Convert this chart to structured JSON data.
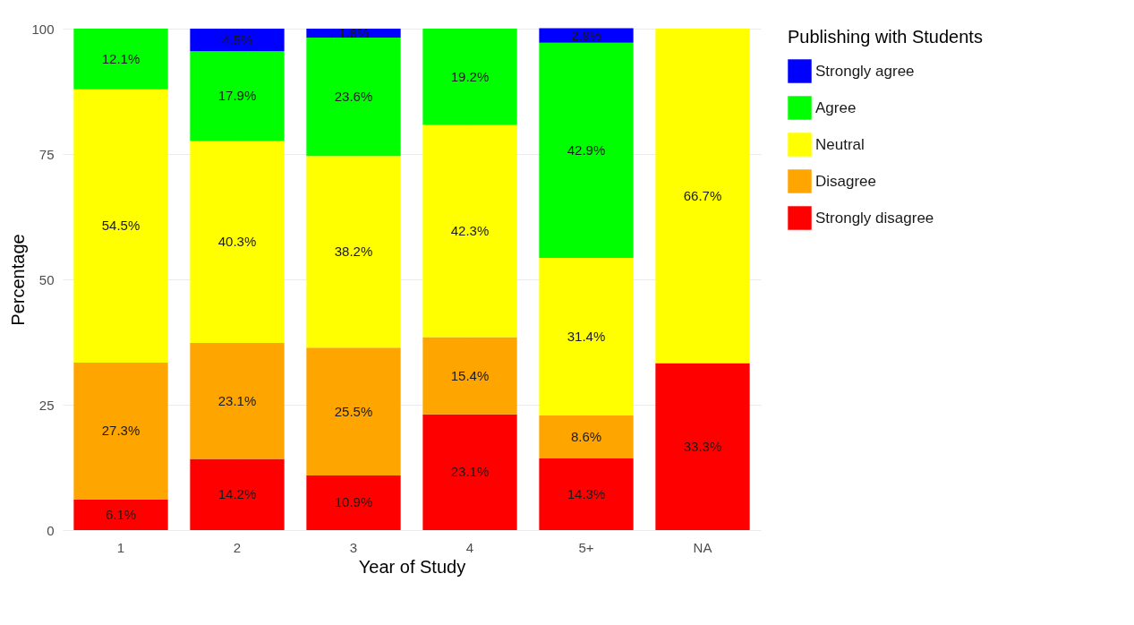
{
  "chart_data": {
    "type": "bar",
    "stacked": true,
    "xlabel": "Year of Study",
    "ylabel": "Percentage",
    "legend_title": "Publishing with Students",
    "legend": "right",
    "grid": true,
    "categories": [
      "1",
      "2",
      "3",
      "4",
      "5+",
      "NA"
    ],
    "ylim": [
      0,
      100
    ],
    "yticks": [
      0,
      25,
      50,
      75,
      100
    ],
    "series": [
      {
        "name": "Strongly disagree",
        "color": "#ff0000",
        "values": [
          6.1,
          14.2,
          10.9,
          23.1,
          14.3,
          33.3
        ],
        "value_labels": [
          "6.1%",
          "14.2%",
          "10.9%",
          "23.1%",
          "14.3%",
          "33.3%"
        ]
      },
      {
        "name": "Disagree",
        "color": "#ffa500",
        "values": [
          27.3,
          23.1,
          25.5,
          15.4,
          8.6,
          null
        ],
        "value_labels": [
          "27.3%",
          "23.1%",
          "25.5%",
          "15.4%",
          "8.6%",
          null
        ]
      },
      {
        "name": "Neutral",
        "color": "#ffff00",
        "values": [
          54.5,
          40.3,
          38.2,
          42.3,
          31.4,
          66.7
        ],
        "value_labels": [
          "54.5%",
          "40.3%",
          "38.2%",
          "42.3%",
          "31.4%",
          "66.7%"
        ]
      },
      {
        "name": "Agree",
        "color": "#00ff00",
        "values": [
          12.1,
          17.9,
          23.6,
          19.2,
          42.9,
          null
        ],
        "value_labels": [
          "12.1%",
          "17.9%",
          "23.6%",
          "19.2%",
          "42.9%",
          null
        ]
      },
      {
        "name": "Strongly agree",
        "color": "#0000ff",
        "values": [
          null,
          4.5,
          1.8,
          null,
          2.9,
          null
        ],
        "value_labels": [
          null,
          "4.5%",
          "1.8%",
          null,
          "2.9%",
          null
        ]
      }
    ]
  }
}
